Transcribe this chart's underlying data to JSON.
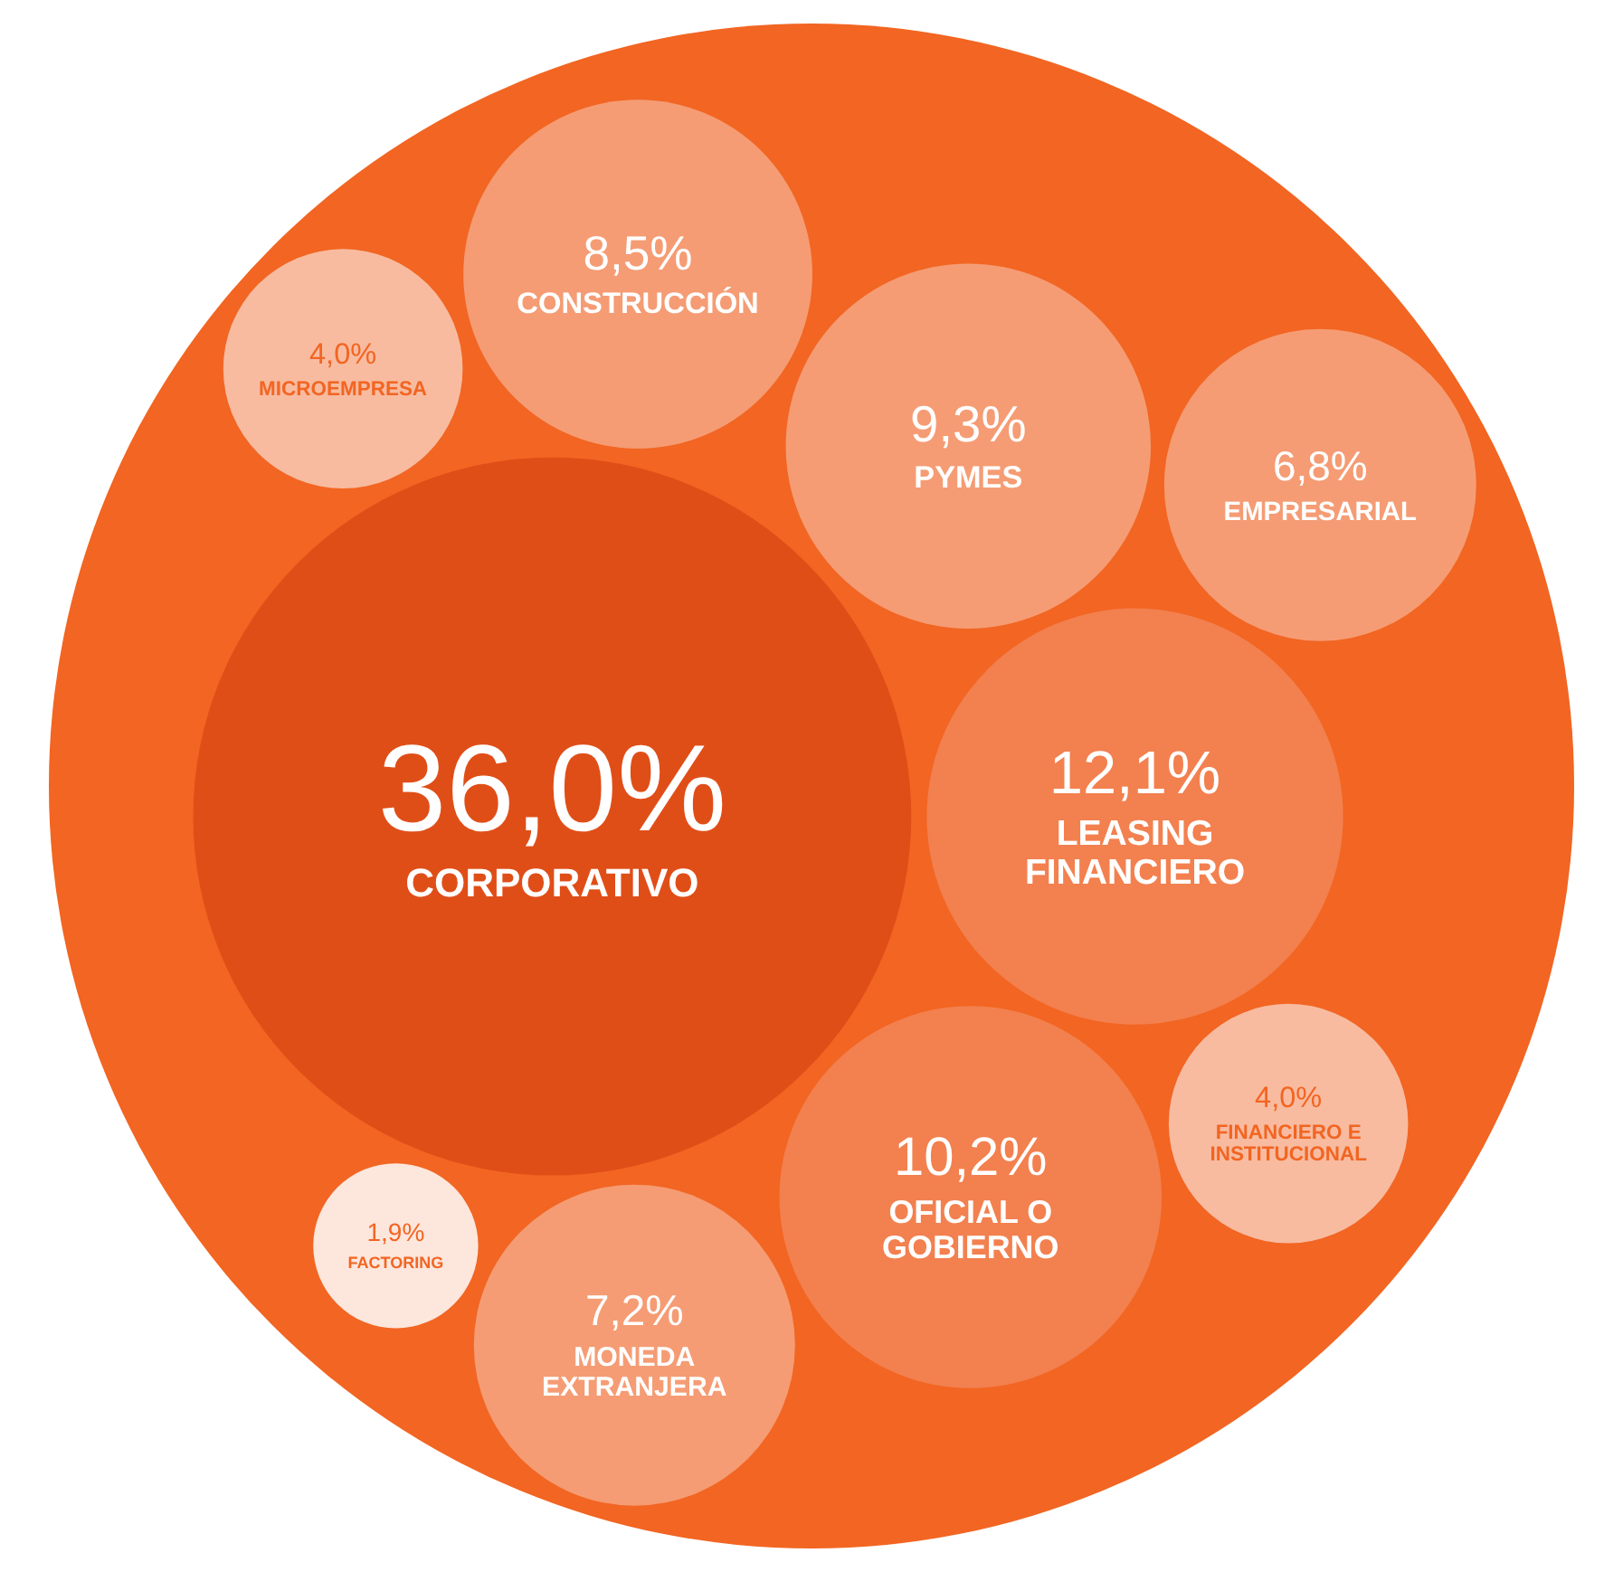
{
  "chart_data": {
    "type": "other",
    "categories": [
      "CORPORATIVO",
      "LEASING FINANCIERO",
      "OFICIAL O GOBIERNO",
      "PYMES",
      "CONSTRUCCIÓN",
      "MONEDA EXTRANJERA",
      "EMPRESARIAL",
      "FINANCIERO E INSTITUCIONAL",
      "MICROEMPRESA",
      "FACTORING"
    ],
    "values": [
      36.0,
      12.1,
      10.2,
      9.3,
      8.5,
      7.2,
      6.8,
      4.0,
      4.0,
      1.9
    ],
    "value_labels": [
      "36,0%",
      "12,1%",
      "10,2%",
      "9,3%",
      "8,5%",
      "7,2%",
      "6,8%",
      "4,0%",
      "4,0%",
      "1,9%"
    ],
    "colors": [
      "#e04e18",
      "#f3804f",
      "#f3804f",
      "#f59c74",
      "#f59c74",
      "#f59c74",
      "#f59c74",
      "#f8bba0",
      "#f8bba0",
      "#fde6dc"
    ]
  }
}
